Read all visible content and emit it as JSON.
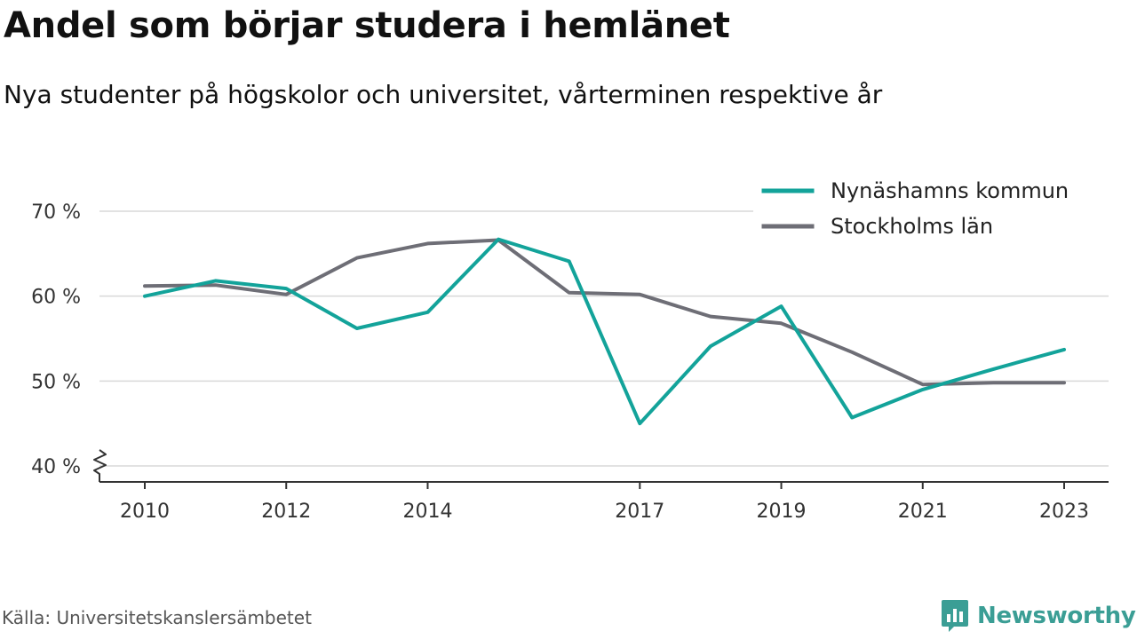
{
  "header": {
    "title": "Andel som börjar studera i hemlänet",
    "subtitle": "Nya studenter på högskolor och universitet, vårterminen respektive år"
  },
  "footer": {
    "source": "Källa: Universitetskanslersämbetet",
    "brand": "Newsworthy"
  },
  "chart_data": {
    "type": "line",
    "title": "Andel som börjar studera i hemlänet",
    "subtitle": "Nya studenter på högskolor och universitet, vårterminen respektive år",
    "xlabel": "",
    "ylabel": "",
    "x": [
      2010,
      2011,
      2012,
      2013,
      2014,
      2015,
      2016,
      2017,
      2018,
      2019,
      2020,
      2021,
      2022,
      2023
    ],
    "x_tick_labels": [
      "2010",
      "2012",
      "2014",
      "2017",
      "2019",
      "2021",
      "2023"
    ],
    "y_tick_labels": [
      "40 %",
      "50 %",
      "60 %",
      "70 %"
    ],
    "ylim": [
      40,
      70
    ],
    "y_axis_break": true,
    "grid": true,
    "legend_position": "top-right",
    "series": [
      {
        "name": "Nynäshamns kommun",
        "color": "#13a39a",
        "values": [
          60.0,
          61.8,
          60.9,
          56.2,
          58.1,
          66.7,
          64.1,
          45.0,
          54.1,
          58.8,
          45.7,
          49.0,
          51.4,
          53.7
        ]
      },
      {
        "name": "Stockholms län",
        "color": "#6e6e76",
        "values": [
          61.2,
          61.3,
          60.2,
          64.5,
          66.2,
          66.6,
          60.4,
          60.2,
          57.6,
          56.8,
          53.4,
          49.6,
          49.8,
          49.8
        ]
      }
    ]
  }
}
